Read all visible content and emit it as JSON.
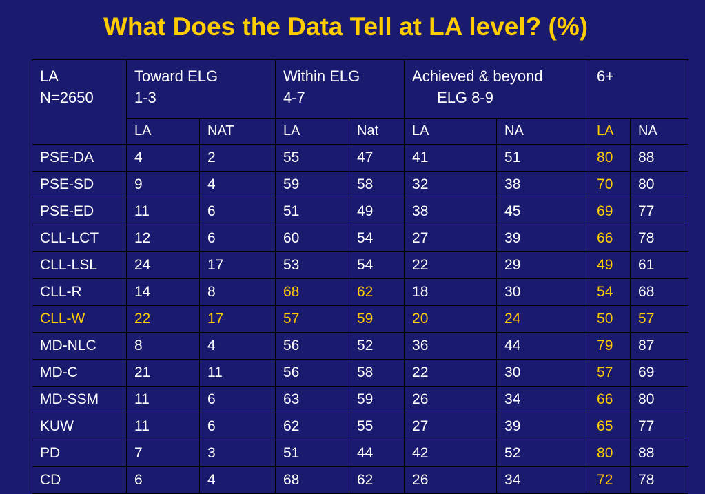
{
  "title": "What Does the Data Tell at LA level? (%)",
  "colors": {
    "background": "#1a1a6e",
    "highlight": "#ffcc00",
    "text": "#ffffff"
  },
  "table": {
    "corner": {
      "line1": "LA",
      "line2": "N=2650"
    },
    "groups": [
      {
        "line1": "Toward ELG",
        "line2": "1-3"
      },
      {
        "line1": "Within ELG",
        "line2": "4-7"
      },
      {
        "line1": "Achieved & beyond",
        "line2": "ELG  8-9"
      },
      {
        "line1": "6+",
        "line2": ""
      }
    ],
    "subheaders": [
      "LA",
      "NAT",
      "LA",
      "Nat",
      "LA",
      "NA",
      "LA",
      "NA"
    ],
    "rows": [
      {
        "label": "PSE-DA",
        "values": [
          "4",
          "2",
          "55",
          "47",
          "41",
          "51",
          "80",
          "88"
        ]
      },
      {
        "label": "PSE-SD",
        "values": [
          "9",
          "4",
          "59",
          "58",
          "32",
          "38",
          "70",
          "80"
        ]
      },
      {
        "label": "PSE-ED",
        "values": [
          "11",
          "6",
          "51",
          "49",
          "38",
          "45",
          "69",
          "77"
        ]
      },
      {
        "label": "CLL-LCT",
        "values": [
          "12",
          "6",
          "60",
          "54",
          "27",
          "39",
          "66",
          "78"
        ]
      },
      {
        "label": "CLL-LSL",
        "values": [
          "24",
          "17",
          "53",
          "54",
          "22",
          "29",
          "49",
          "61"
        ]
      },
      {
        "label": "CLL-R",
        "values": [
          "14",
          "8",
          "68",
          "62",
          "18",
          "30",
          "54",
          "68"
        ]
      },
      {
        "label": "CLL-W",
        "values": [
          "22",
          "17",
          "57",
          "59",
          "20",
          "24",
          "50",
          "57"
        ]
      },
      {
        "label": "MD-NLC",
        "values": [
          "8",
          "4",
          "56",
          "52",
          "36",
          "44",
          "79",
          "87"
        ]
      },
      {
        "label": "MD-C",
        "values": [
          "21",
          "11",
          "56",
          "58",
          "22",
          "30",
          "57",
          "69"
        ]
      },
      {
        "label": "MD-SSM",
        "values": [
          "11",
          "6",
          "63",
          "59",
          "26",
          "34",
          "66",
          "80"
        ]
      },
      {
        "label": "KUW",
        "values": [
          "11",
          "6",
          "62",
          "55",
          "27",
          "39",
          "65",
          "77"
        ]
      },
      {
        "label": "PD",
        "values": [
          "7",
          "3",
          "51",
          "44",
          "42",
          "52",
          "80",
          "88"
        ]
      },
      {
        "label": "CD",
        "values": [
          "6",
          "4",
          "68",
          "62",
          "26",
          "34",
          "72",
          "78"
        ]
      }
    ]
  }
}
